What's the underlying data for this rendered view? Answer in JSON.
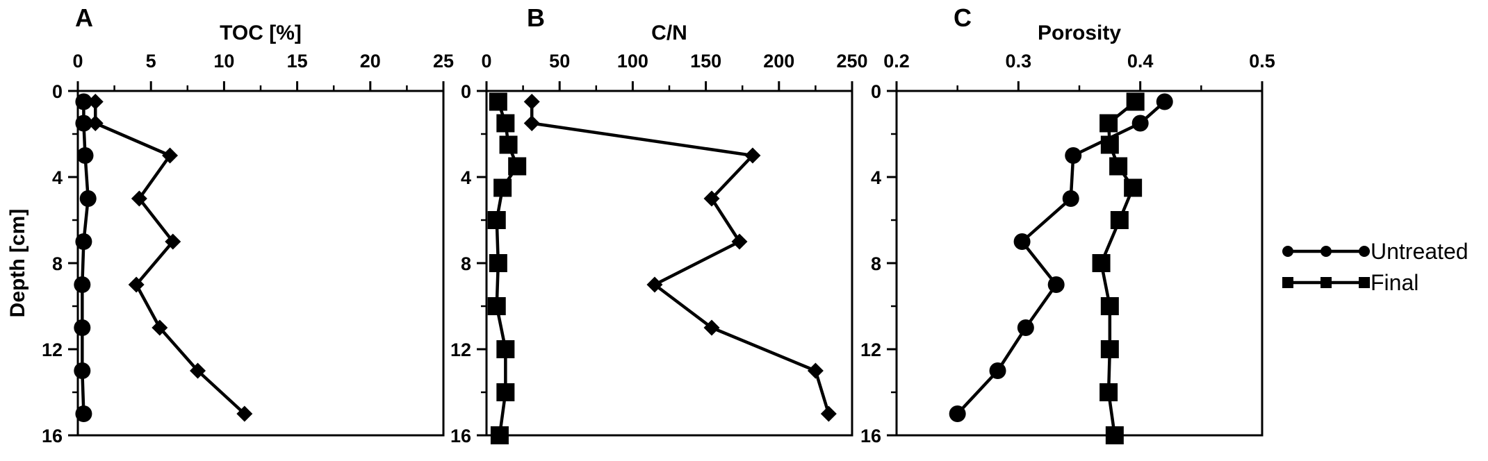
{
  "y_axis": {
    "label": "Depth [cm]",
    "ticks": [
      0,
      4,
      8,
      12,
      16
    ],
    "range": [
      0,
      16
    ]
  },
  "legend": [
    {
      "label": "Untreated",
      "marker": "circle"
    },
    {
      "label": "Final",
      "marker": "square"
    }
  ],
  "colors": {
    "ink": "#000000",
    "background": "#ffffff"
  },
  "chart_data": [
    {
      "panel": "A",
      "type": "line",
      "xlabel": "TOC [%]",
      "xlim": [
        0,
        25
      ],
      "xticks": [
        0,
        5,
        10,
        15,
        20,
        25
      ],
      "ylabel": "Depth [cm]",
      "ylim": [
        0,
        16
      ],
      "y_inverted": true,
      "x_axis_position": "top",
      "series": [
        {
          "marker": "circle",
          "points": [
            [
              0.4,
              0.5
            ],
            [
              0.4,
              1.5
            ],
            [
              0.5,
              3
            ],
            [
              0.7,
              5
            ],
            [
              0.4,
              7
            ],
            [
              0.3,
              9
            ],
            [
              0.3,
              11
            ],
            [
              0.3,
              13
            ],
            [
              0.4,
              15
            ]
          ]
        },
        {
          "marker": "diamond",
          "points": [
            [
              1.2,
              0.5
            ],
            [
              1.2,
              1.5
            ],
            [
              6.3,
              3
            ],
            [
              4.2,
              5
            ],
            [
              6.5,
              7
            ],
            [
              4.0,
              9
            ],
            [
              5.6,
              11
            ],
            [
              8.2,
              13
            ],
            [
              11.4,
              15
            ]
          ]
        }
      ]
    },
    {
      "panel": "B",
      "type": "line",
      "xlabel": "C/N",
      "xlim": [
        0,
        250
      ],
      "xticks": [
        0,
        50,
        100,
        150,
        200,
        250
      ],
      "ylabel": "",
      "ylim": [
        0,
        16
      ],
      "y_inverted": true,
      "x_axis_position": "top",
      "series": [
        {
          "marker": "diamond",
          "points": [
            [
              31,
              0.5
            ],
            [
              31,
              1.5
            ],
            [
              182,
              3
            ],
            [
              154,
              5
            ],
            [
              173,
              7
            ],
            [
              115,
              9
            ],
            [
              154,
              11
            ],
            [
              225,
              13
            ],
            [
              234,
              15
            ]
          ]
        },
        {
          "marker": "square",
          "points": [
            [
              8,
              0.5
            ],
            [
              13,
              1.5
            ],
            [
              15,
              2.5
            ],
            [
              21,
              3.5
            ],
            [
              11,
              4.5
            ],
            [
              7,
              6
            ],
            [
              8,
              8
            ],
            [
              7,
              10
            ],
            [
              13,
              12
            ],
            [
              13,
              14
            ],
            [
              9,
              16
            ]
          ]
        }
      ]
    },
    {
      "panel": "C",
      "type": "line",
      "xlabel": "Porosity",
      "xlim": [
        0.2,
        0.5
      ],
      "xticks": [
        0.2,
        0.3,
        0.4,
        0.5
      ],
      "ylabel": "",
      "ylim": [
        0,
        16
      ],
      "y_inverted": true,
      "x_axis_position": "top",
      "series": [
        {
          "name": "Untreated",
          "marker": "circle",
          "points": [
            [
              0.42,
              0.5
            ],
            [
              0.4,
              1.5
            ],
            [
              0.345,
              3
            ],
            [
              0.343,
              5
            ],
            [
              0.303,
              7
            ],
            [
              0.331,
              9
            ],
            [
              0.306,
              11
            ],
            [
              0.283,
              13
            ],
            [
              0.25,
              15
            ]
          ]
        },
        {
          "name": "Final",
          "marker": "square",
          "points": [
            [
              0.396,
              0.5
            ],
            [
              0.374,
              1.5
            ],
            [
              0.375,
              2.5
            ],
            [
              0.382,
              3.5
            ],
            [
              0.394,
              4.5
            ],
            [
              0.383,
              6
            ],
            [
              0.368,
              8
            ],
            [
              0.375,
              10
            ],
            [
              0.375,
              12
            ],
            [
              0.374,
              14
            ],
            [
              0.379,
              16
            ]
          ]
        }
      ]
    }
  ]
}
